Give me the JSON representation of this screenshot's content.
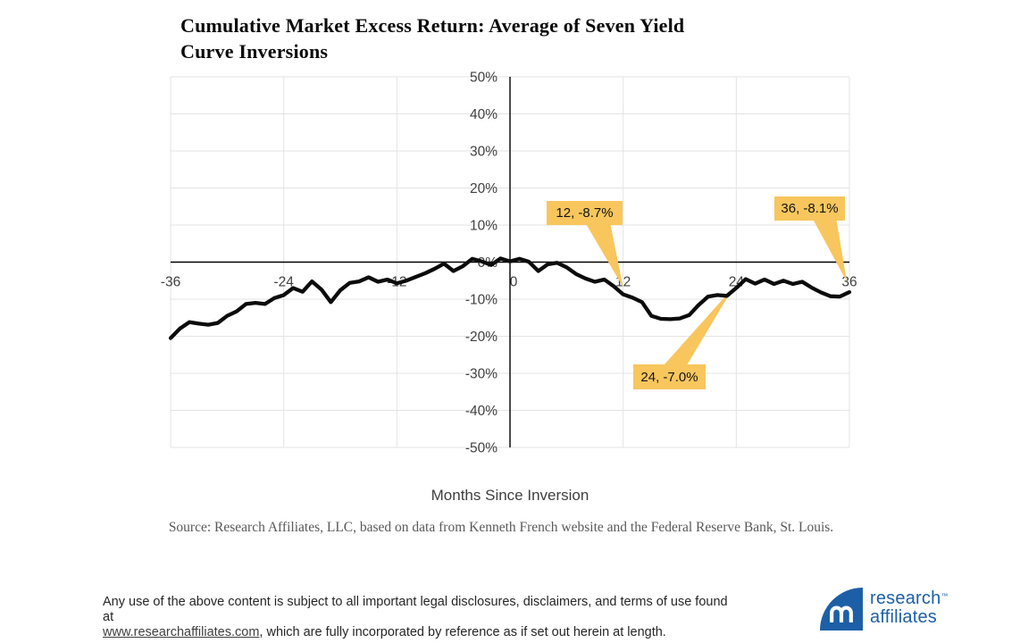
{
  "header": {
    "title_line1": "Cumulative Market Excess Return: Average of Seven Yield",
    "title_line2": "Curve Inversions"
  },
  "chart_data": {
    "type": "line",
    "title": "Cumulative Market Excess Return: Average of Seven Yield Curve Inversions",
    "xlabel": "Months Since Inversion",
    "ylabel": "",
    "xlim": [
      -36,
      36
    ],
    "ylim": [
      -50,
      50
    ],
    "grid": true,
    "x_tick_values": [
      -36,
      -24,
      -12,
      0,
      12,
      24,
      36
    ],
    "x_tick_labels": [
      "-36",
      "-24",
      "-12",
      "0",
      "12",
      "24",
      "36"
    ],
    "y_tick_values": [
      50,
      40,
      30,
      20,
      10,
      0,
      -10,
      -20,
      -30,
      -40,
      -50
    ],
    "y_tick_labels": [
      "50%",
      "40%",
      "30%",
      "20%",
      "10%",
      "0%",
      "-10%",
      "-20%",
      "-30%",
      "-40%",
      "-50%"
    ],
    "series": [
      {
        "x": [
          -36,
          -35,
          -34,
          -33,
          -32,
          -31,
          -30,
          -29,
          -28,
          -27,
          -26,
          -25,
          -24,
          -23,
          -22,
          -21,
          -20,
          -19,
          -18,
          -17,
          -16,
          -15,
          -14,
          -13,
          -12,
          -11,
          -10,
          -9,
          -8,
          -7,
          -6,
          -5,
          -4,
          -3,
          -2,
          -1,
          0,
          1,
          2,
          3,
          4,
          5,
          6,
          7,
          8,
          9,
          10,
          11,
          12,
          13,
          14,
          15,
          16,
          17,
          18,
          19,
          20,
          21,
          22,
          23,
          24,
          25,
          26,
          27,
          28,
          29,
          30,
          31,
          32,
          33,
          34,
          35,
          36
        ],
        "y": [
          -20.5,
          -17.9,
          -16.2,
          -16.6,
          -16.9,
          -16.4,
          -14.5,
          -13.3,
          -11.3,
          -11.0,
          -11.3,
          -9.7,
          -8.9,
          -7.0,
          -8.0,
          -5.2,
          -7.4,
          -10.8,
          -7.6,
          -5.6,
          -5.2,
          -4.1,
          -5.3,
          -4.7,
          -5.7,
          -5.0,
          -4.0,
          -3.0,
          -1.8,
          -0.4,
          -2.4,
          -1.1,
          0.9,
          0.2,
          -0.8,
          1.0,
          0.2,
          0.9,
          0.1,
          -2.4,
          -0.6,
          -0.2,
          -1.4,
          -3.2,
          -4.4,
          -5.3,
          -4.7,
          -6.5,
          -8.7,
          -9.6,
          -10.8,
          -14.5,
          -15.3,
          -15.4,
          -15.2,
          -14.3,
          -11.6,
          -9.3,
          -8.9,
          -9.1,
          -7.0,
          -4.6,
          -5.8,
          -4.7,
          -5.9,
          -5.0,
          -5.9,
          -5.3,
          -6.9,
          -8.2,
          -9.2,
          -9.3,
          -8.1
        ]
      }
    ],
    "annotations": [
      {
        "x": 12,
        "y": -8.7,
        "label": "12, -8.7%"
      },
      {
        "x": 36,
        "y": -8.1,
        "label": "36, -8.1%"
      },
      {
        "x": 24,
        "y": -7.0,
        "label": "24, -7.0%"
      }
    ],
    "legend": "none"
  },
  "footer": {
    "xaxis_title": "Months Since Inversion",
    "source": "Source: Research Affiliates, LLC, based on data from Kenneth French website and the Federal Reserve Bank, St. Louis.",
    "legal_line1": "Any use of the above content is subject to all important legal disclosures, disclaimers, and terms of use found at",
    "legal_link": "www.researchaffiliates.com",
    "legal_line2_rest": ", which are fully incorporated by reference as if set out herein at length."
  },
  "logo": {
    "line1": "research",
    "line2": "affiliates",
    "tm": "™"
  },
  "colors": {
    "callout_fill": "#F8C65D",
    "line": "#0B0B0B",
    "grid": "#E3E3E3",
    "axis": "#000000",
    "tick_text": "#404040",
    "logo_blue": "#1D5FA6"
  }
}
